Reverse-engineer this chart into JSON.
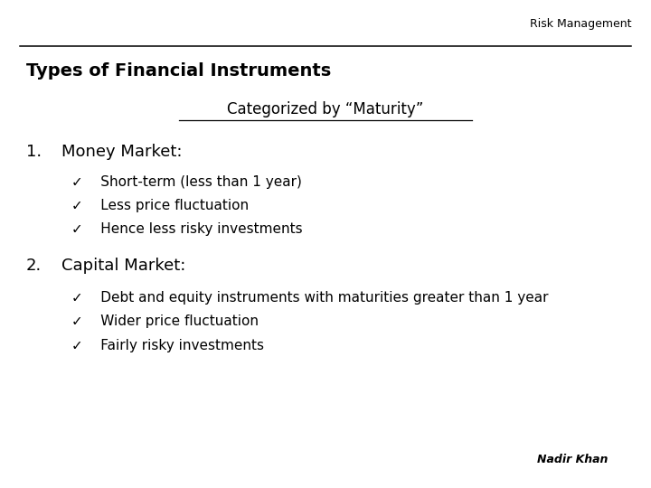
{
  "background_color": "#ffffff",
  "header_label": "Risk Management",
  "title": "Types of Financial Instruments",
  "subtitle": "Categorized by “Maturity”",
  "section1_number": "1.",
  "section1_heading": "Money Market:",
  "section1_bullets": [
    "✓    Short-term (less than 1 year)",
    "✓    Less price fluctuation",
    "✓    Hence less risky investments"
  ],
  "section2_number": "2.",
  "section2_heading": "Capital Market:",
  "section2_bullets": [
    "✓    Debt and equity instruments with maturities greater than 1 year",
    "✓    Wider price fluctuation",
    "✓    Fairly risky investments"
  ],
  "footer": "Nadir Khan",
  "header_fontsize": 9,
  "title_fontsize": 14,
  "subtitle_fontsize": 12,
  "section_heading_fontsize": 13,
  "bullet_fontsize": 11,
  "footer_fontsize": 9
}
